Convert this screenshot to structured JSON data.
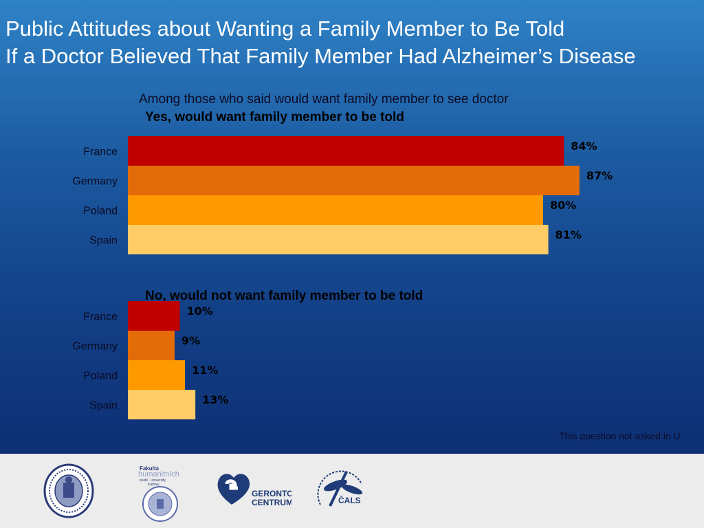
{
  "title": {
    "line1": "Public Attitudes about Wanting a Family Member to Be Told",
    "line2": "If a Doctor Believed That Family Member Had Alzheimer’s Disease"
  },
  "subtitle": "Among those who said would want family member to see doctor",
  "note": "This question not asked in U",
  "colors": {
    "France": "#c00000",
    "Germany": "#e36c09",
    "Poland": "#ff9900",
    "Spain": "#ffcc66"
  },
  "chart_data": [
    {
      "type": "bar",
      "orientation": "horizontal",
      "title": "Yes, would want family member to be told",
      "categories": [
        "France",
        "Germany",
        "Poland",
        "Spain"
      ],
      "values": [
        84,
        87,
        80,
        81
      ],
      "labels": [
        "84%",
        "87%",
        "80%",
        "81%"
      ],
      "unit": "%"
    },
    {
      "type": "bar",
      "orientation": "horizontal",
      "title": "No, would not want family member to be told",
      "categories": [
        "France",
        "Germany",
        "Poland",
        "Spain"
      ],
      "values": [
        10,
        9,
        11,
        13
      ],
      "labels": [
        "10%",
        "9%",
        "11%",
        "13%"
      ],
      "unit": "%"
    }
  ],
  "footer": {
    "logo2_text": [
      "Fakulta",
      "humanitních",
      "studií",
      "Univerzity",
      "Karlovy"
    ],
    "logo3_text": [
      "GERONTO",
      "CENTRUM"
    ],
    "logo4_text": "ČALS"
  }
}
